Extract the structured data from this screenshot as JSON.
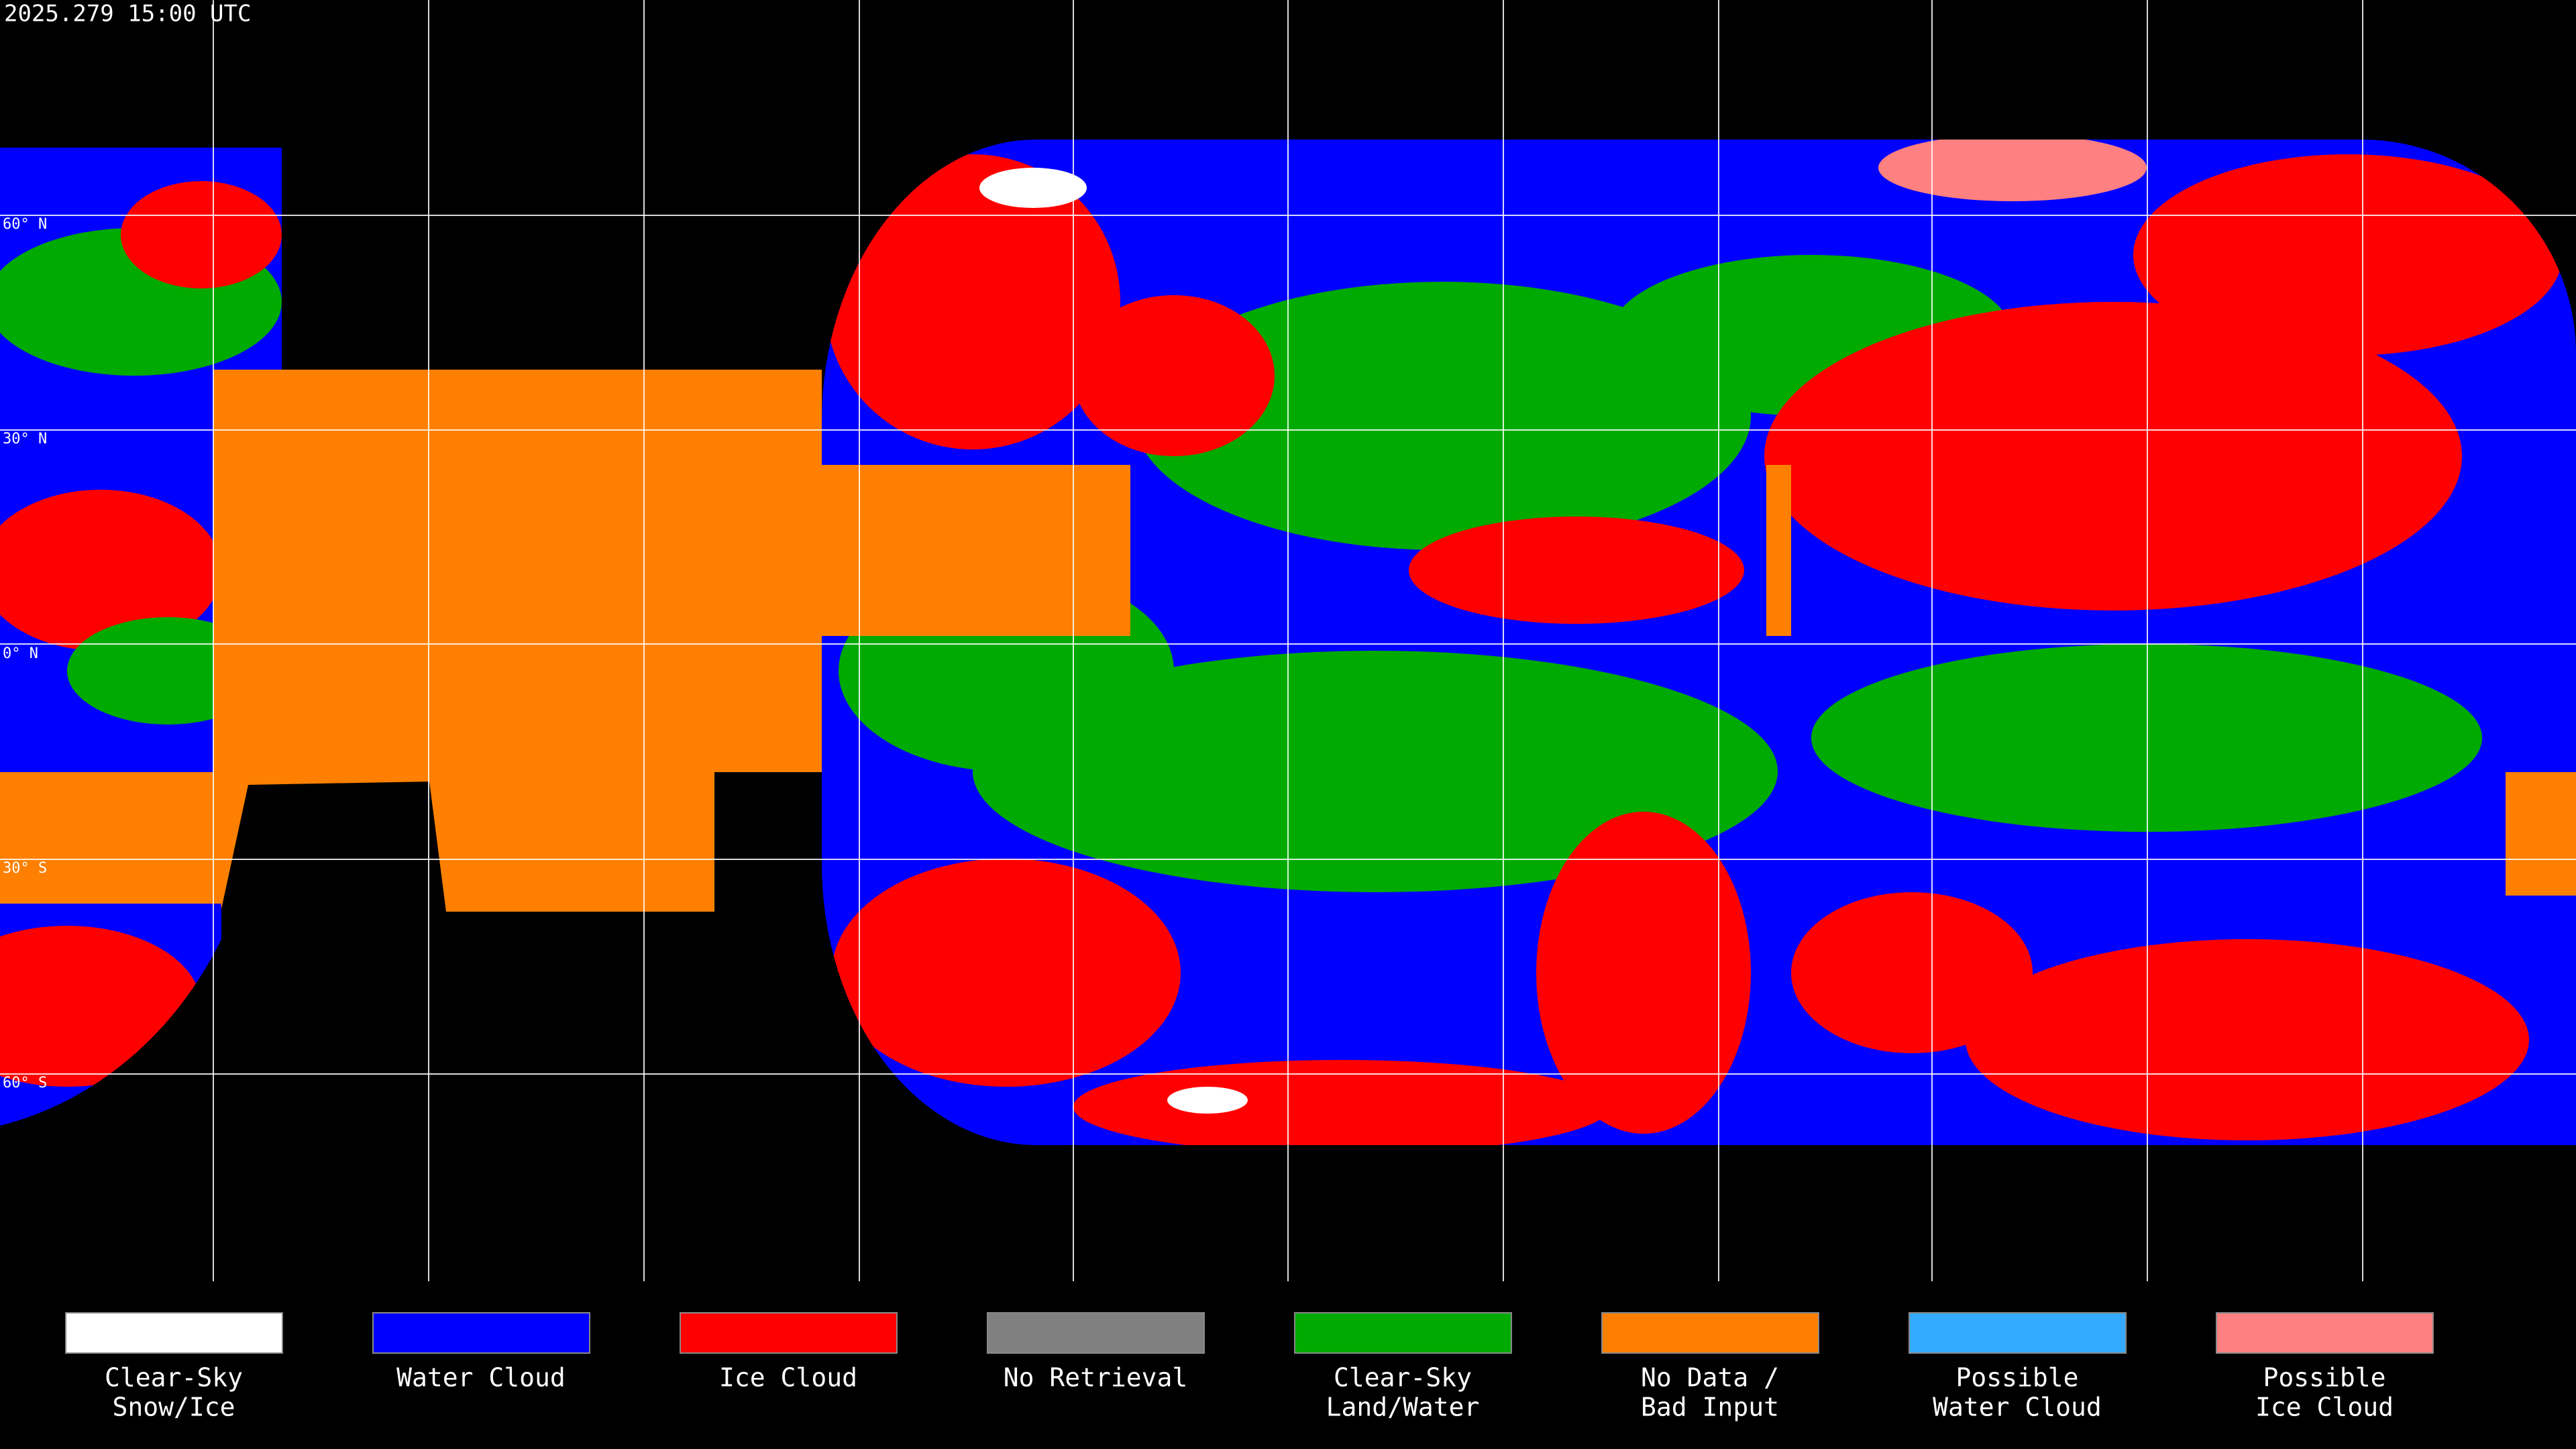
{
  "header": {
    "title": "2025.279 15:00 UTC"
  },
  "grid": {
    "latitude_labels": [
      "60° N",
      "30° N",
      "0° N",
      "30° S",
      "60° S"
    ]
  },
  "legend": [
    {
      "lines": [
        "Clear-Sky",
        "Snow/Ice"
      ],
      "color": "#ffffff"
    },
    {
      "lines": [
        "Water Cloud"
      ],
      "color": "#0000ff"
    },
    {
      "lines": [
        "Ice Cloud"
      ],
      "color": "#ff0000"
    },
    {
      "lines": [
        "No Retrieval"
      ],
      "color": "#808080"
    },
    {
      "lines": [
        "Clear-Sky",
        "Land/Water"
      ],
      "color": "#00aa00"
    },
    {
      "lines": [
        "No Data /",
        "Bad Input"
      ],
      "color": "#ff8000"
    },
    {
      "lines": [
        "Possible",
        "Water Cloud"
      ],
      "color": "#33aaff"
    },
    {
      "lines": [
        "Possible",
        "Ice Cloud"
      ],
      "color": "#ff8080"
    }
  ]
}
